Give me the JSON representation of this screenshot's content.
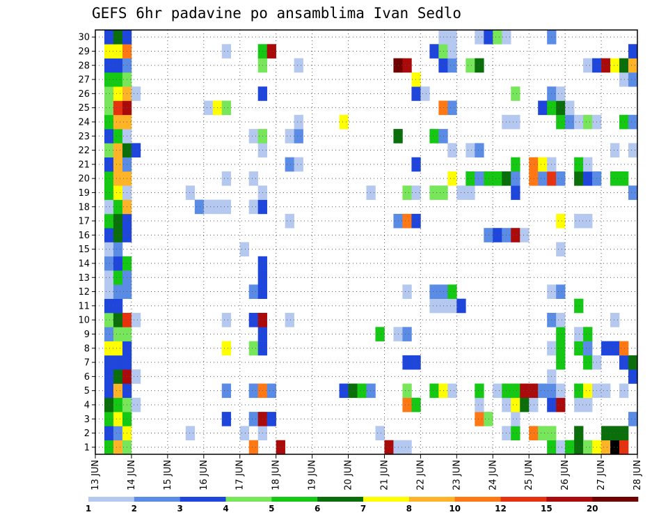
{
  "chart_data": {
    "type": "heatmap",
    "title": "GEFS 6hr padavine po ansamblima Ivan Sedlo",
    "xlabel": "",
    "ylabel": "",
    "x_ticks": [
      "13 JUN",
      "14 JUN",
      "15 JUN",
      "16 JUN",
      "17 JUN",
      "18 JUN",
      "19 JUN",
      "20 JUN",
      "21 JUN",
      "22 JUN",
      "23 JUN",
      "24 JUN",
      "25 JUN",
      "26 JUN",
      "27 JUN",
      "28 JUN"
    ],
    "y_ticks": [
      "1",
      "2",
      "3",
      "4",
      "5",
      "6",
      "7",
      "8",
      "9",
      "10",
      "11",
      "12",
      "13",
      "14",
      "15",
      "16",
      "17",
      "18",
      "19",
      "20",
      "21",
      "22",
      "23",
      "24",
      "25",
      "26",
      "27",
      "28",
      "29",
      "30"
    ],
    "xlim": [
      0,
      60
    ],
    "ylim": [
      0.5,
      30.5
    ],
    "x_unit": "6-hour step from 13 JUN 00",
    "grid": true,
    "legend": "bottom",
    "colorbar": {
      "labels": [
        "1",
        "2",
        "3",
        "4",
        "5",
        "6",
        "7",
        "8",
        "10",
        "12",
        "15",
        "20"
      ],
      "colors": [
        "#b4c8f0",
        "#5a8ce6",
        "#1e46dc",
        "#78e65a",
        "#14c814",
        "#0a6e0a",
        "#ffff00",
        "#ffb428",
        "#ff7814",
        "#e6320f",
        "#aa0a0a",
        "#6e0000"
      ]
    },
    "cells": [
      [
        1,
        1,
        5
      ],
      [
        1,
        2,
        8
      ],
      [
        1,
        3,
        4
      ],
      [
        1,
        17,
        9
      ],
      [
        1,
        20,
        11
      ],
      [
        1,
        32,
        11
      ],
      [
        1,
        33,
        1
      ],
      [
        1,
        34,
        1
      ],
      [
        1,
        50,
        5
      ],
      [
        1,
        51,
        1
      ],
      [
        1,
        52,
        5
      ],
      [
        1,
        53,
        6
      ],
      [
        1,
        54,
        4
      ],
      [
        1,
        55,
        7
      ],
      [
        1,
        56,
        8
      ],
      [
        1,
        57,
        13
      ],
      [
        1,
        58,
        10
      ],
      [
        2,
        1,
        3
      ],
      [
        2,
        2,
        2
      ],
      [
        2,
        3,
        7
      ],
      [
        2,
        10,
        1
      ],
      [
        2,
        16,
        1
      ],
      [
        2,
        18,
        1
      ],
      [
        2,
        31,
        1
      ],
      [
        2,
        31,
        1
      ],
      [
        2,
        45,
        1
      ],
      [
        2,
        46,
        5
      ],
      [
        2,
        48,
        9
      ],
      [
        2,
        49,
        4
      ],
      [
        2,
        50,
        4
      ],
      [
        2,
        53,
        6
      ],
      [
        2,
        56,
        6
      ],
      [
        2,
        57,
        6
      ],
      [
        2,
        58,
        6
      ],
      [
        3,
        1,
        5
      ],
      [
        3,
        2,
        7
      ],
      [
        3,
        3,
        5
      ],
      [
        3,
        14,
        3
      ],
      [
        3,
        17,
        2
      ],
      [
        3,
        18,
        11
      ],
      [
        3,
        19,
        3
      ],
      [
        3,
        42,
        9
      ],
      [
        3,
        43,
        4
      ],
      [
        3,
        46,
        1
      ],
      [
        3,
        59,
        2
      ],
      [
        4,
        1,
        6
      ],
      [
        4,
        2,
        5
      ],
      [
        4,
        3,
        4
      ],
      [
        4,
        4,
        1
      ],
      [
        4,
        34,
        9
      ],
      [
        4,
        35,
        5
      ],
      [
        4,
        42,
        1
      ],
      [
        4,
        45,
        1
      ],
      [
        4,
        46,
        7
      ],
      [
        4,
        47,
        6
      ],
      [
        4,
        48,
        1
      ],
      [
        4,
        50,
        3
      ],
      [
        4,
        51,
        11
      ],
      [
        4,
        53,
        1
      ],
      [
        4,
        54,
        1
      ],
      [
        5,
        1,
        3
      ],
      [
        5,
        2,
        8
      ],
      [
        5,
        3,
        3
      ],
      [
        5,
        14,
        2
      ],
      [
        5,
        17,
        2
      ],
      [
        5,
        18,
        9
      ],
      [
        5,
        19,
        2
      ],
      [
        5,
        27,
        3
      ],
      [
        5,
        28,
        6
      ],
      [
        5,
        29,
        5
      ],
      [
        5,
        30,
        2
      ],
      [
        5,
        34,
        4
      ],
      [
        5,
        37,
        5
      ],
      [
        5,
        38,
        7
      ],
      [
        5,
        39,
        1
      ],
      [
        5,
        42,
        5
      ],
      [
        5,
        44,
        1
      ],
      [
        5,
        45,
        5
      ],
      [
        5,
        46,
        5
      ],
      [
        5,
        47,
        11
      ],
      [
        5,
        48,
        11
      ],
      [
        5,
        49,
        2
      ],
      [
        5,
        50,
        2
      ],
      [
        5,
        51,
        1
      ],
      [
        5,
        53,
        5
      ],
      [
        5,
        54,
        7
      ],
      [
        5,
        55,
        1
      ],
      [
        5,
        56,
        1
      ],
      [
        5,
        58,
        1
      ],
      [
        6,
        1,
        3
      ],
      [
        6,
        2,
        6
      ],
      [
        6,
        3,
        11
      ],
      [
        6,
        4,
        1
      ],
      [
        6,
        50,
        1
      ],
      [
        6,
        59,
        3
      ],
      [
        7,
        1,
        3
      ],
      [
        7,
        2,
        3
      ],
      [
        7,
        3,
        3
      ],
      [
        7,
        34,
        3
      ],
      [
        7,
        35,
        3
      ],
      [
        7,
        51,
        5
      ],
      [
        7,
        54,
        5
      ],
      [
        7,
        55,
        1
      ],
      [
        7,
        58,
        3
      ],
      [
        7,
        59,
        6
      ],
      [
        8,
        1,
        7
      ],
      [
        8,
        2,
        7
      ],
      [
        8,
        3,
        3
      ],
      [
        8,
        14,
        7
      ],
      [
        8,
        17,
        4
      ],
      [
        8,
        18,
        3
      ],
      [
        8,
        50,
        1
      ],
      [
        8,
        51,
        5
      ],
      [
        8,
        53,
        5
      ],
      [
        8,
        54,
        2
      ],
      [
        8,
        56,
        3
      ],
      [
        8,
        57,
        3
      ],
      [
        8,
        58,
        9
      ],
      [
        9,
        1,
        2
      ],
      [
        9,
        2,
        4
      ],
      [
        9,
        3,
        4
      ],
      [
        9,
        18,
        3
      ],
      [
        9,
        31,
        5
      ],
      [
        9,
        33,
        1
      ],
      [
        9,
        34,
        2
      ],
      [
        9,
        51,
        5
      ],
      [
        9,
        53,
        1
      ],
      [
        9,
        54,
        5
      ],
      [
        10,
        1,
        4
      ],
      [
        10,
        2,
        6
      ],
      [
        10,
        3,
        10
      ],
      [
        10,
        4,
        1
      ],
      [
        10,
        14,
        1
      ],
      [
        10,
        17,
        3
      ],
      [
        10,
        18,
        11
      ],
      [
        10,
        21,
        1
      ],
      [
        10,
        50,
        2
      ],
      [
        10,
        51,
        1
      ],
      [
        10,
        57,
        1
      ],
      [
        11,
        1,
        3
      ],
      [
        11,
        2,
        3
      ],
      [
        11,
        37,
        1
      ],
      [
        11,
        38,
        1
      ],
      [
        11,
        39,
        1
      ],
      [
        11,
        40,
        3
      ],
      [
        11,
        53,
        5
      ],
      [
        12,
        1,
        1
      ],
      [
        12,
        2,
        2
      ],
      [
        12,
        3,
        2
      ],
      [
        12,
        17,
        2
      ],
      [
        12,
        18,
        3
      ],
      [
        12,
        34,
        1
      ],
      [
        12,
        37,
        2
      ],
      [
        12,
        38,
        2
      ],
      [
        12,
        39,
        5
      ],
      [
        12,
        50,
        1
      ],
      [
        12,
        51,
        2
      ],
      [
        13,
        1,
        1
      ],
      [
        13,
        2,
        5
      ],
      [
        13,
        3,
        2
      ],
      [
        13,
        18,
        3
      ],
      [
        14,
        1,
        2
      ],
      [
        14,
        2,
        3
      ],
      [
        14,
        3,
        5
      ],
      [
        14,
        18,
        3
      ],
      [
        15,
        1,
        1
      ],
      [
        15,
        2,
        2
      ],
      [
        15,
        16,
        1
      ],
      [
        15,
        51,
        1
      ],
      [
        16,
        1,
        3
      ],
      [
        16,
        2,
        6
      ],
      [
        16,
        3,
        3
      ],
      [
        16,
        43,
        2
      ],
      [
        16,
        44,
        3
      ],
      [
        16,
        45,
        2
      ],
      [
        16,
        46,
        11
      ],
      [
        16,
        47,
        1
      ],
      [
        17,
        1,
        5
      ],
      [
        17,
        2,
        6
      ],
      [
        17,
        3,
        3
      ],
      [
        17,
        21,
        1
      ],
      [
        17,
        33,
        2
      ],
      [
        17,
        34,
        9
      ],
      [
        17,
        35,
        3
      ],
      [
        17,
        51,
        7
      ],
      [
        17,
        53,
        1
      ],
      [
        17,
        54,
        1
      ],
      [
        18,
        1,
        1
      ],
      [
        18,
        2,
        5
      ],
      [
        18,
        3,
        8
      ],
      [
        18,
        11,
        2
      ],
      [
        18,
        12,
        1
      ],
      [
        18,
        13,
        1
      ],
      [
        18,
        14,
        1
      ],
      [
        18,
        17,
        1
      ],
      [
        18,
        18,
        3
      ],
      [
        19,
        1,
        5
      ],
      [
        19,
        2,
        7
      ],
      [
        19,
        3,
        1
      ],
      [
        19,
        10,
        1
      ],
      [
        19,
        18,
        1
      ],
      [
        19,
        30,
        1
      ],
      [
        19,
        34,
        4
      ],
      [
        19,
        35,
        1
      ],
      [
        19,
        37,
        4
      ],
      [
        19,
        38,
        4
      ],
      [
        19,
        40,
        1
      ],
      [
        19,
        41,
        1
      ],
      [
        19,
        46,
        3
      ],
      [
        19,
        59,
        2
      ],
      [
        20,
        1,
        5
      ],
      [
        20,
        2,
        8
      ],
      [
        20,
        3,
        8
      ],
      [
        20,
        14,
        1
      ],
      [
        20,
        17,
        1
      ],
      [
        20,
        39,
        7
      ],
      [
        20,
        41,
        5
      ],
      [
        20,
        42,
        2
      ],
      [
        20,
        43,
        5
      ],
      [
        20,
        44,
        5
      ],
      [
        20,
        45,
        6
      ],
      [
        20,
        46,
        2
      ],
      [
        20,
        48,
        9
      ],
      [
        20,
        49,
        2
      ],
      [
        20,
        50,
        10
      ],
      [
        20,
        51,
        2
      ],
      [
        20,
        53,
        6
      ],
      [
        20,
        54,
        3
      ],
      [
        20,
        55,
        2
      ],
      [
        20,
        57,
        5
      ],
      [
        20,
        58,
        5
      ],
      [
        21,
        1,
        3
      ],
      [
        21,
        2,
        8
      ],
      [
        21,
        3,
        2
      ],
      [
        21,
        21,
        2
      ],
      [
        21,
        22,
        1
      ],
      [
        21,
        35,
        3
      ],
      [
        21,
        46,
        5
      ],
      [
        21,
        48,
        9
      ],
      [
        21,
        49,
        7
      ],
      [
        21,
        50,
        1
      ],
      [
        21,
        53,
        5
      ],
      [
        21,
        54,
        1
      ],
      [
        22,
        1,
        4
      ],
      [
        22,
        2,
        8
      ],
      [
        22,
        3,
        6
      ],
      [
        22,
        4,
        3
      ],
      [
        22,
        18,
        1
      ],
      [
        22,
        39,
        1
      ],
      [
        22,
        41,
        1
      ],
      [
        22,
        42,
        2
      ],
      [
        22,
        57,
        1
      ],
      [
        22,
        59,
        1
      ],
      [
        23,
        1,
        3
      ],
      [
        23,
        2,
        5
      ],
      [
        23,
        3,
        1
      ],
      [
        23,
        17,
        1
      ],
      [
        23,
        18,
        4
      ],
      [
        23,
        21,
        1
      ],
      [
        23,
        22,
        2
      ],
      [
        23,
        33,
        6
      ],
      [
        23,
        37,
        5
      ],
      [
        23,
        38,
        2
      ],
      [
        24,
        1,
        5
      ],
      [
        24,
        2,
        8
      ],
      [
        24,
        3,
        8
      ],
      [
        24,
        22,
        1
      ],
      [
        24,
        27,
        7
      ],
      [
        24,
        45,
        1
      ],
      [
        24,
        46,
        1
      ],
      [
        24,
        51,
        5
      ],
      [
        24,
        52,
        2
      ],
      [
        24,
        53,
        1
      ],
      [
        24,
        54,
        4
      ],
      [
        24,
        55,
        1
      ],
      [
        24,
        58,
        5
      ],
      [
        24,
        59,
        2
      ],
      [
        25,
        1,
        4
      ],
      [
        25,
        2,
        10
      ],
      [
        25,
        3,
        11
      ],
      [
        25,
        12,
        1
      ],
      [
        25,
        13,
        7
      ],
      [
        25,
        14,
        4
      ],
      [
        25,
        38,
        9
      ],
      [
        25,
        39,
        2
      ],
      [
        25,
        49,
        3
      ],
      [
        25,
        50,
        5
      ],
      [
        25,
        51,
        6
      ],
      [
        25,
        52,
        1
      ],
      [
        26,
        1,
        4
      ],
      [
        26,
        2,
        7
      ],
      [
        26,
        3,
        8
      ],
      [
        26,
        4,
        1
      ],
      [
        26,
        18,
        3
      ],
      [
        26,
        35,
        3
      ],
      [
        26,
        36,
        1
      ],
      [
        26,
        46,
        4
      ],
      [
        26,
        50,
        2
      ],
      [
        26,
        51,
        1
      ],
      [
        27,
        1,
        5
      ],
      [
        27,
        2,
        5
      ],
      [
        27,
        3,
        4
      ],
      [
        27,
        35,
        7
      ],
      [
        27,
        58,
        1
      ],
      [
        27,
        59,
        2
      ],
      [
        28,
        1,
        3
      ],
      [
        28,
        2,
        3
      ],
      [
        28,
        3,
        2
      ],
      [
        28,
        18,
        4
      ],
      [
        28,
        22,
        1
      ],
      [
        28,
        33,
        12
      ],
      [
        28,
        34,
        11
      ],
      [
        28,
        38,
        3
      ],
      [
        28,
        39,
        2
      ],
      [
        28,
        41,
        4
      ],
      [
        28,
        42,
        6
      ],
      [
        28,
        54,
        1
      ],
      [
        28,
        55,
        3
      ],
      [
        28,
        56,
        11
      ],
      [
        28,
        57,
        7
      ],
      [
        28,
        58,
        6
      ],
      [
        28,
        59,
        8
      ],
      [
        29,
        1,
        7
      ],
      [
        29,
        2,
        7
      ],
      [
        29,
        3,
        9
      ],
      [
        29,
        14,
        1
      ],
      [
        29,
        18,
        5
      ],
      [
        29,
        19,
        11
      ],
      [
        29,
        37,
        3
      ],
      [
        29,
        38,
        4
      ],
      [
        29,
        39,
        1
      ],
      [
        29,
        59,
        3
      ],
      [
        30,
        1,
        3
      ],
      [
        30,
        2,
        6
      ],
      [
        30,
        3,
        3
      ],
      [
        30,
        38,
        1
      ],
      [
        30,
        39,
        1
      ],
      [
        30,
        42,
        1
      ],
      [
        30,
        43,
        3
      ],
      [
        30,
        44,
        4
      ],
      [
        30,
        45,
        1
      ],
      [
        30,
        50,
        2
      ]
    ]
  }
}
